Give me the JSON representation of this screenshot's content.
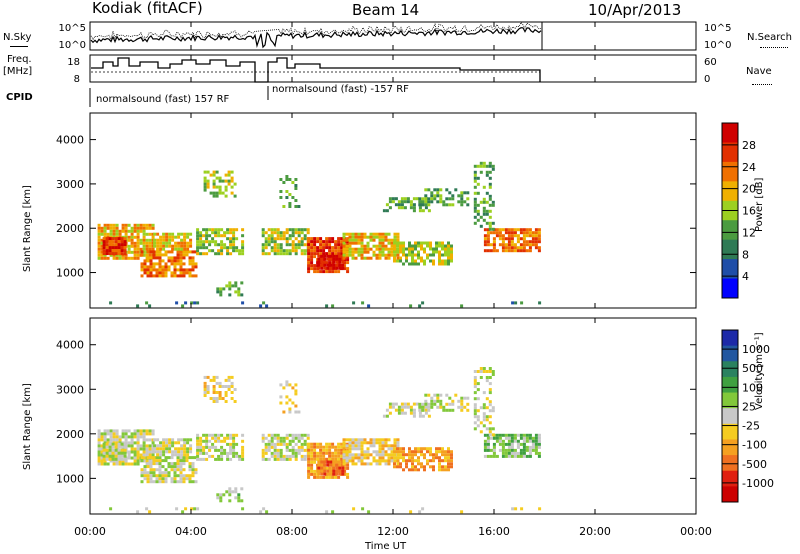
{
  "header": {
    "radar": "Kodiak (fitACF)",
    "beam": "Beam 14",
    "date": "10/Apr/2013"
  },
  "summary": {
    "nsky_label": "N.Sky",
    "nsearch_label": "N.Search",
    "freq_label_1": "Freq.",
    "freq_label_2": "[MHz]",
    "nave_label": "Nave",
    "cpid_label": "CPID",
    "noise_ticks_left": [
      "10^5",
      "10^0"
    ],
    "noise_ticks_right": [
      "10^5",
      "10^0"
    ],
    "freq_ticks": [
      "18",
      "8"
    ],
    "nave_ticks": [
      "60",
      "0"
    ],
    "cpid_segments": [
      "normalsound (fast) 157 RF",
      "normalsound (fast) -157 RF"
    ]
  },
  "colors": {
    "power_scale": [
      "#0000ff",
      "#1f4ea8",
      "#2f7a55",
      "#4b9b40",
      "#9cd020",
      "#f0b000",
      "#f07000",
      "#e23000",
      "#d00000"
    ],
    "velocity_scale": [
      "#1d2aa8",
      "#2257a0",
      "#2a8260",
      "#3fa040",
      "#82c83a",
      "#c8c8c8",
      "#f5cc20",
      "#f5a020",
      "#f07020",
      "#e02010",
      "#cc0000"
    ]
  },
  "chart_data": [
    {
      "type": "heatmap",
      "name": "power",
      "x_range_hours": [
        0,
        24
      ],
      "ylabel": "Slant Range [km]",
      "ylim": [
        200,
        4600
      ],
      "yticks": [
        1000,
        2000,
        3000,
        4000
      ],
      "colorbar_label": "Power [dB]",
      "colorbar_ticks": [
        4,
        8,
        12,
        16,
        20,
        24,
        28
      ],
      "colorbar_range": [
        0,
        32
      ],
      "grid": false
    },
    {
      "type": "heatmap",
      "name": "velocity",
      "x_range_hours": [
        0,
        24
      ],
      "ylabel": "Slant Range [km]",
      "ylim": [
        200,
        4600
      ],
      "yticks": [
        1000,
        2000,
        3000,
        4000
      ],
      "colorbar_label": "Velocity [m s⁻¹]",
      "colorbar_ticks": [
        "1000",
        "500",
        "100",
        "25",
        "-25",
        "-100",
        "-500",
        "-1000"
      ],
      "grid": false
    }
  ],
  "x_axis": {
    "ticks": [
      "00:00",
      "04:00",
      "08:00",
      "12:00",
      "16:00",
      "20:00",
      "00:00"
    ],
    "label": "Time UT"
  }
}
